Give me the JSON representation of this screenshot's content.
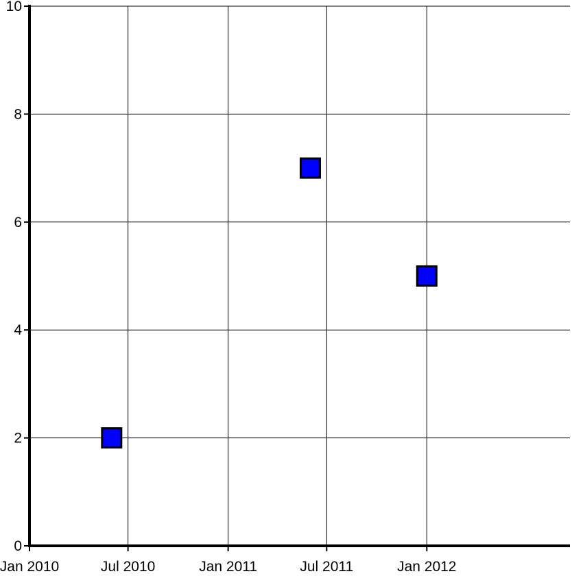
{
  "chart_data": {
    "type": "scatter",
    "title": "",
    "xlabel": "",
    "ylabel": "",
    "x_axis_type": "date",
    "xlim": [
      "2010-01-01",
      "2012-09-20"
    ],
    "ylim": [
      0,
      10
    ],
    "grid": true,
    "x_ticks": [
      {
        "value": "2010-01-01",
        "label": "Jan 2010"
      },
      {
        "value": "2010-07-01",
        "label": "Jul 2010"
      },
      {
        "value": "2011-01-01",
        "label": "Jan 2011"
      },
      {
        "value": "2011-07-01",
        "label": "Jul 2011"
      },
      {
        "value": "2012-01-01",
        "label": "Jan 2012"
      }
    ],
    "y_ticks": [
      {
        "value": 0,
        "label": "0"
      },
      {
        "value": 2,
        "label": "2"
      },
      {
        "value": 4,
        "label": "4"
      },
      {
        "value": 6,
        "label": "6"
      },
      {
        "value": 8,
        "label": "8"
      },
      {
        "value": 10,
        "label": "10"
      }
    ],
    "series": [
      {
        "marker": "square",
        "color": "#0000ff",
        "edge_color": "#000000",
        "points": [
          {
            "x": "2010-06-01",
            "y": 2
          },
          {
            "x": "2011-06-01",
            "y": 7
          },
          {
            "x": "2012-01-01",
            "y": 5
          }
        ]
      }
    ]
  }
}
